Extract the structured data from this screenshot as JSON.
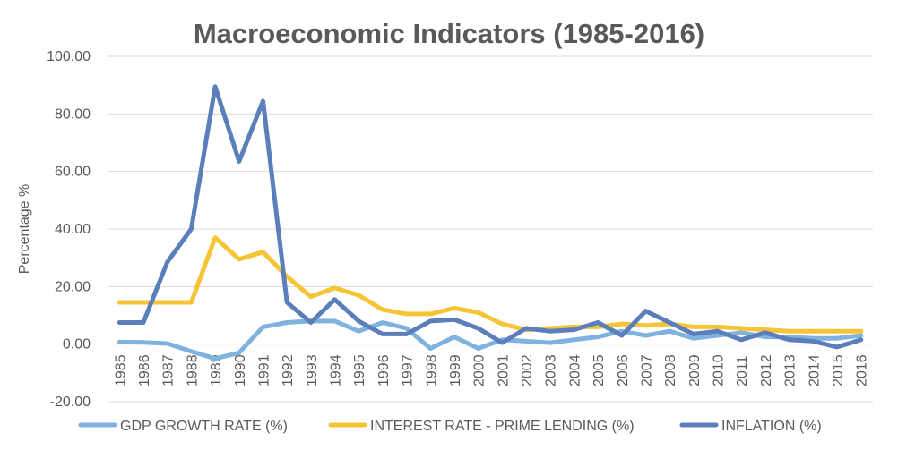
{
  "chart_data": {
    "type": "line",
    "title": "Macroeconomic Indicators (1985-2016)",
    "xlabel": "",
    "ylabel": "Percentage %",
    "ylim": [
      -20,
      100
    ],
    "yticks": [
      "-20.00",
      "0.00",
      "20.00",
      "40.00",
      "60.00",
      "80.00",
      "100.00"
    ],
    "categories": [
      "1985",
      "1986",
      "1987",
      "1988",
      "1989",
      "1990",
      "1991",
      "1992",
      "1993",
      "1994",
      "1995",
      "1996",
      "1997",
      "1998",
      "1999",
      "2000",
      "2001",
      "2002",
      "2003",
      "2004",
      "2005",
      "2006",
      "2007",
      "2008",
      "2009",
      "2010",
      "2011",
      "2012",
      "2013",
      "2014",
      "2015",
      "2016"
    ],
    "series": [
      {
        "name": "GDP GROWTH RATE (%)",
        "color": "#7fb2df",
        "values": [
          0.7,
          0.6,
          0.2,
          -2.5,
          -5.0,
          -3.0,
          6.0,
          7.5,
          8.0,
          8.0,
          4.5,
          7.5,
          5.5,
          -1.5,
          2.5,
          -1.5,
          1.5,
          1.0,
          0.5,
          1.5,
          2.5,
          4.5,
          3.0,
          4.5,
          2.0,
          3.0,
          4.0,
          2.5,
          2.5,
          2.0,
          2.0,
          3.0
        ]
      },
      {
        "name": "INTEREST RATE - PRIME LENDING (%)",
        "color": "#f5c537",
        "values": [
          14.5,
          14.5,
          14.5,
          14.5,
          37.0,
          29.5,
          32.0,
          23.5,
          16.5,
          19.5,
          17.0,
          12.0,
          10.5,
          10.5,
          12.5,
          11.0,
          7.0,
          5.0,
          5.5,
          6.0,
          6.0,
          7.0,
          6.5,
          7.0,
          6.0,
          6.0,
          5.5,
          5.0,
          4.5,
          4.5,
          4.5,
          4.5
        ]
      },
      {
        "name": "INFLATION (%)",
        "color": "#5b7fba",
        "values": [
          7.5,
          7.5,
          28.5,
          40.0,
          89.5,
          63.5,
          84.5,
          14.5,
          7.5,
          15.5,
          8.0,
          3.5,
          3.5,
          8.0,
          8.5,
          5.5,
          0.5,
          5.5,
          4.5,
          5.0,
          7.5,
          3.0,
          11.5,
          7.5,
          3.5,
          4.5,
          1.5,
          4.0,
          1.5,
          1.0,
          -1.0,
          1.5
        ]
      }
    ]
  }
}
